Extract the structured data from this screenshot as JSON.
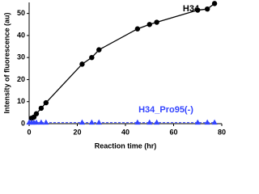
{
  "chart_data": {
    "type": "line",
    "x_label": "Reaction time (hr)",
    "y_label": "Intensity of fluorescence (au)",
    "xlim": [
      0,
      80
    ],
    "ylim": [
      0,
      55
    ],
    "xticks": [
      0,
      20,
      40,
      60,
      80
    ],
    "yticks": [
      0,
      10,
      20,
      30,
      40,
      50
    ],
    "series": [
      {
        "name": "H34",
        "color": "#000000",
        "marker": "circle",
        "dash": false,
        "x": [
          1,
          2,
          3,
          5,
          7,
          22,
          26,
          29,
          45,
          50,
          53,
          70,
          74,
          77
        ],
        "values": [
          2.5,
          3,
          4.5,
          7,
          9.5,
          27,
          30,
          33.5,
          43,
          45,
          46,
          51.5,
          52,
          54.5
        ]
      },
      {
        "name": "H34_Pro95(-)",
        "color": "#3344ff",
        "marker": "triangle",
        "dash": true,
        "x": [
          0,
          1,
          2,
          3,
          5,
          7,
          22,
          26,
          29,
          45,
          50,
          53,
          70,
          74,
          77
        ],
        "values": [
          0.5,
          0.5,
          0.5,
          0.5,
          0.5,
          0.5,
          0.5,
          0.5,
          0.5,
          0.5,
          0.5,
          0.5,
          0.5,
          0.5,
          0.5
        ]
      }
    ]
  }
}
